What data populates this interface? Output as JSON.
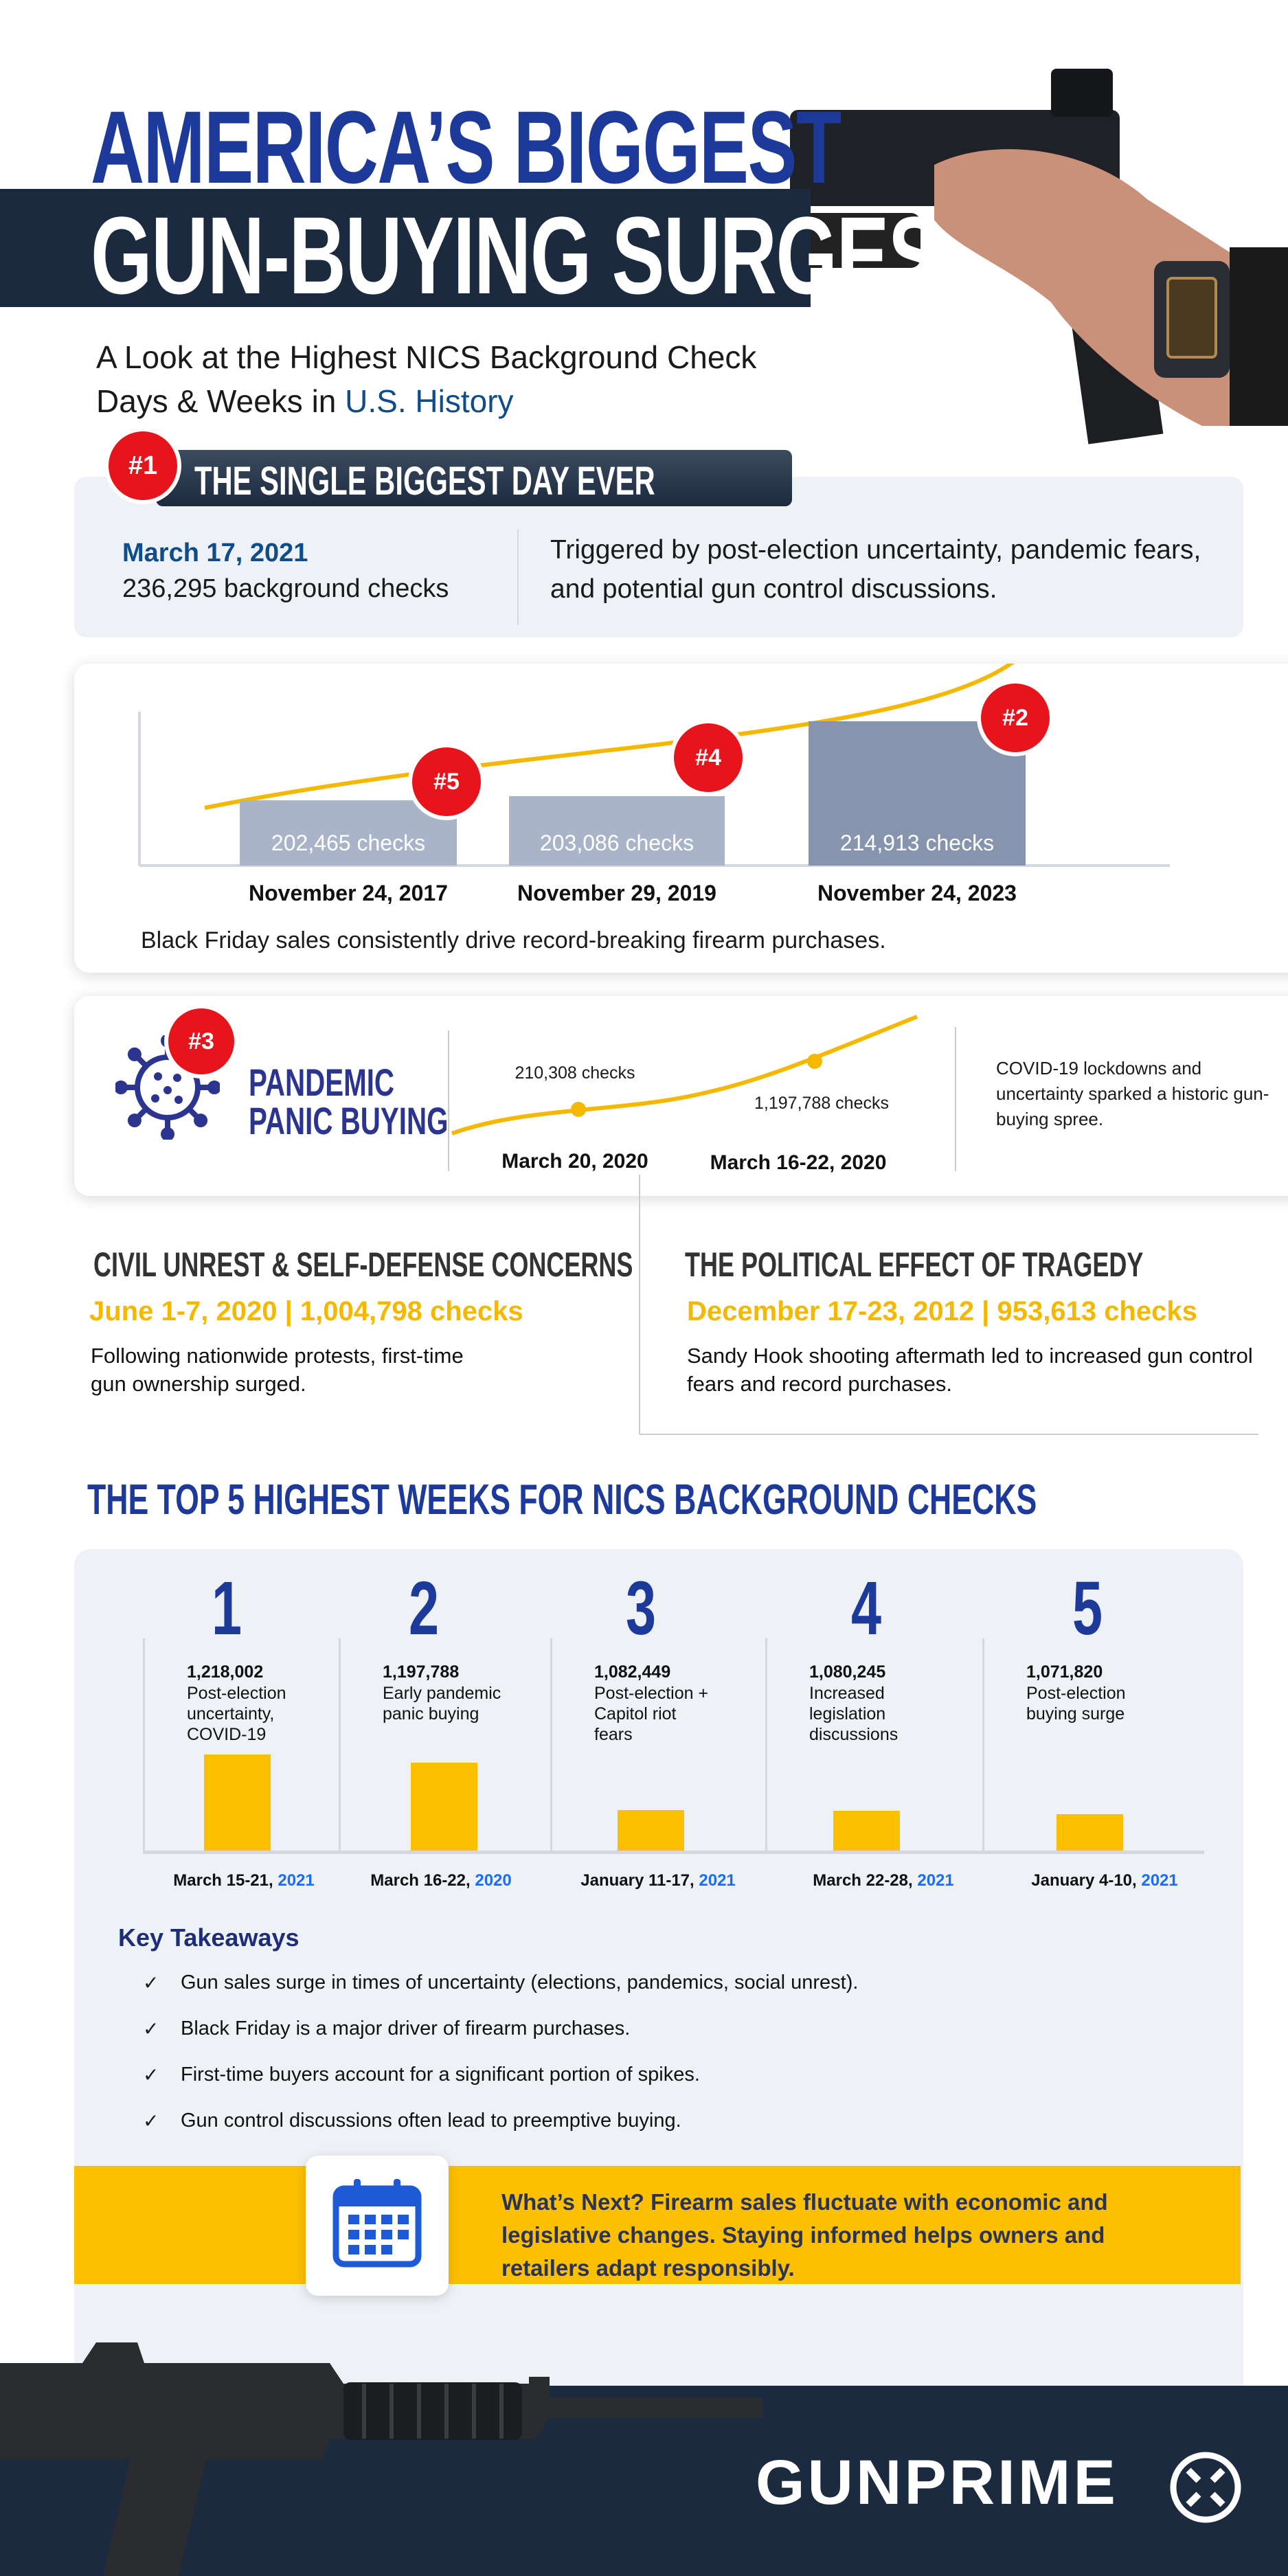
{
  "header": {
    "title_line1": "AMERICA’S BIGGEST",
    "title_line2": "GUN-BUYING SURGES",
    "subtitle_line1": "A Look at the Highest NICS Background Check",
    "subtitle_line2_prefix": "Days & Weeks in ",
    "subtitle_line2_highlight": "U.S. History"
  },
  "biggest_day": {
    "rank": "#1",
    "heading": "THE SINGLE BIGGEST DAY EVER",
    "date": "March 17, 2021",
    "checks": "236,295 background checks",
    "description": "Triggered by post-election uncertainty, pandemic fears, and potential gun control discussions."
  },
  "black_friday": {
    "caption": "Black Friday sales consistently drive record-breaking firearm purchases.",
    "bars": [
      {
        "rank": "#5",
        "date": "November 24, 2017",
        "value": 202465,
        "label": "202,465  checks"
      },
      {
        "rank": "#4",
        "date": "November 29, 2019",
        "value": 203086,
        "label": "203,086 checks"
      },
      {
        "rank": "#2",
        "date": "November 24, 2023",
        "value": 214913,
        "label": "214,913 checks"
      }
    ]
  },
  "pandemic": {
    "rank": "#3",
    "heading_line1": "PANDEMIC",
    "heading_line2": "PANIC BUYING",
    "points": [
      {
        "label": "210,308 checks",
        "date": "March 20, 2020"
      },
      {
        "label": "1,197,788 checks",
        "date": "March 16-22, 2020"
      }
    ],
    "description": "COVID-19 lockdowns and uncertainty sparked a historic gun-buying spree."
  },
  "civil_unrest": {
    "heading": "CIVIL UNREST & SELF-DEFENSE CONCERNS",
    "stat": "June 1-7, 2020 | 1,004,798 checks",
    "description": "Following nationwide protests, first-time gun ownership surged."
  },
  "tragedy": {
    "heading": "THE POLITICAL EFFECT OF TRAGEDY",
    "stat": "December 17-23, 2012 | 953,613 checks",
    "description": "Sandy Hook shooting aftermath led to increased gun control fears and record purchases."
  },
  "top5": {
    "heading": "THE TOP 5 HIGHEST WEEKS FOR NICS BACKGROUND CHECKS",
    "weeks": [
      {
        "rank": "1",
        "value": "1,218,002",
        "checks": 1218002,
        "desc": "Post-election uncertainty, COVID-19",
        "dates": "March 15-21, ",
        "year": "2021"
      },
      {
        "rank": "2",
        "value": "1,197,788",
        "checks": 1197788,
        "desc": "Early pandemic panic buying",
        "dates": "March 16-22, ",
        "year": "2020"
      },
      {
        "rank": "3",
        "value": "1,082,449",
        "checks": 1082449,
        "desc": "Post-election + Capitol riot fears",
        "dates": "January 11-17, ",
        "year": "2021"
      },
      {
        "rank": "4",
        "value": "1,080,245",
        "checks": 1080245,
        "desc": "Increased legislation discussions",
        "dates": "March 22-28, ",
        "year": "2021"
      },
      {
        "rank": "5",
        "value": "1,071,820",
        "checks": 1071820,
        "desc": "Post-election buying surge",
        "dates": "January 4-10, ",
        "year": "2021"
      }
    ]
  },
  "takeaways": {
    "heading": "Key Takeaways",
    "items": [
      "Gun sales surge in times of uncertainty (elections, pandemics, social unrest).",
      "Black Friday is a major driver of firearm purchases.",
      "First-time buyers account for a significant portion of spikes.",
      "Gun control discussions often lead to preemptive buying."
    ]
  },
  "whats_next": {
    "text": "What’s Next? Firearm sales fluctuate with economic and legislative changes. Staying informed helps owners and retailers adapt responsibly."
  },
  "footer": {
    "brand": "GUNPRIME"
  },
  "colors": {
    "navy": "#1b2a3e",
    "blue": "#1d3a9a",
    "yellow": "#fcc000",
    "red": "#e8141b",
    "panel": "#eef1f6"
  }
}
